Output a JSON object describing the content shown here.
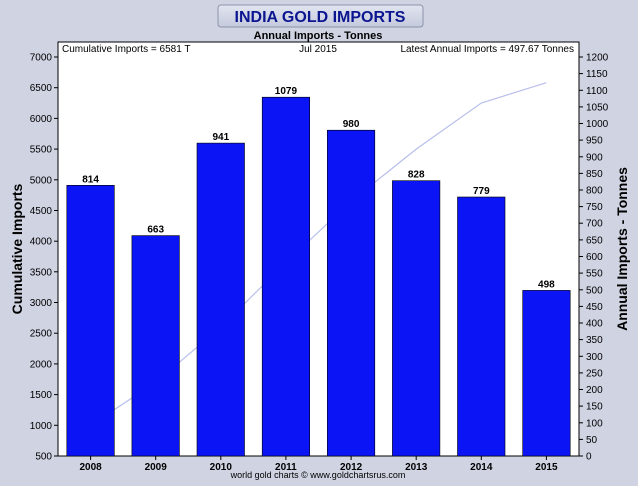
{
  "chart_data": {
    "type": "bar",
    "title": "INDIA GOLD IMPORTS",
    "subtitle": "Annual Imports - Tonnes",
    "info_left": "Cumulative Imports = 6581 T",
    "info_center": "Jul 2015",
    "info_right": "Latest Annual Imports = 497.67 Tonnes",
    "footer": "world gold charts © www.goldchartsrus.com",
    "ylabel_left": "Cumulative Imports",
    "ylabel_right": "Annual Imports - Tonnes",
    "categories": [
      "2008",
      "2009",
      "2010",
      "2011",
      "2012",
      "2013",
      "2014",
      "2015"
    ],
    "series": [
      {
        "values": [
          814,
          663,
          941,
          1079,
          980,
          828,
          779,
          498
        ],
        "labels": [
          "814",
          "663",
          "941",
          "1079",
          "980",
          "828",
          "779",
          "498"
        ],
        "axis": "right",
        "color": "#0a14f5"
      },
      {
        "type": "line",
        "axis": "left",
        "color": "#b8bfea",
        "x": [
          "2008",
          "2009",
          "2010",
          "2011",
          "2012",
          "2013",
          "2014",
          "2015"
        ],
        "values": [
          1000,
          1700,
          2600,
          3650,
          4650,
          5500,
          6250,
          6581
        ]
      }
    ],
    "ylim_left": [
      500,
      7000
    ],
    "yticks_left": [
      "500",
      "1000",
      "1500",
      "2000",
      "2500",
      "3000",
      "3500",
      "4000",
      "4500",
      "5000",
      "5500",
      "6000",
      "6500",
      "7000"
    ],
    "ylim_right": [
      0,
      1200
    ],
    "yticks_right": [
      "0",
      "50",
      "100",
      "150",
      "200",
      "250",
      "300",
      "350",
      "400",
      "450",
      "500",
      "550",
      "600",
      "650",
      "700",
      "750",
      "800",
      "850",
      "900",
      "950",
      "1000",
      "1050",
      "1100",
      "1150",
      "1200"
    ],
    "grid": false,
    "legend": "none"
  }
}
